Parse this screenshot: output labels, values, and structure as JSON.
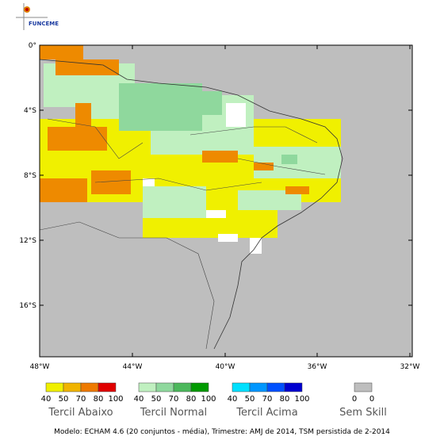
{
  "logo": "FUNCEME",
  "map": {
    "lat_labels": [
      "0°",
      "4°S",
      "8°S",
      "12°S",
      "16°S"
    ],
    "lon_labels": [
      "48°W",
      "44°W",
      "40°W",
      "36°W",
      "32°W"
    ]
  },
  "legend": {
    "groups": [
      {
        "title": "Tercil Abaixo",
        "labels": [
          "40",
          "50",
          "70",
          "80",
          "100"
        ]
      },
      {
        "title": "Tercil Normal",
        "labels": [
          "40",
          "50",
          "70",
          "80",
          "100"
        ]
      },
      {
        "title": "Tercil Acima",
        "labels": [
          "40",
          "50",
          "70",
          "80",
          "100"
        ]
      },
      {
        "title": "Sem Skill",
        "labels": [
          "0",
          "0"
        ]
      }
    ]
  },
  "caption": "Modelo: ECHAM 4.6 (20 conjuntos - média), Trimestre: AMJ de 2014, TSM persistida de 2-2014"
}
